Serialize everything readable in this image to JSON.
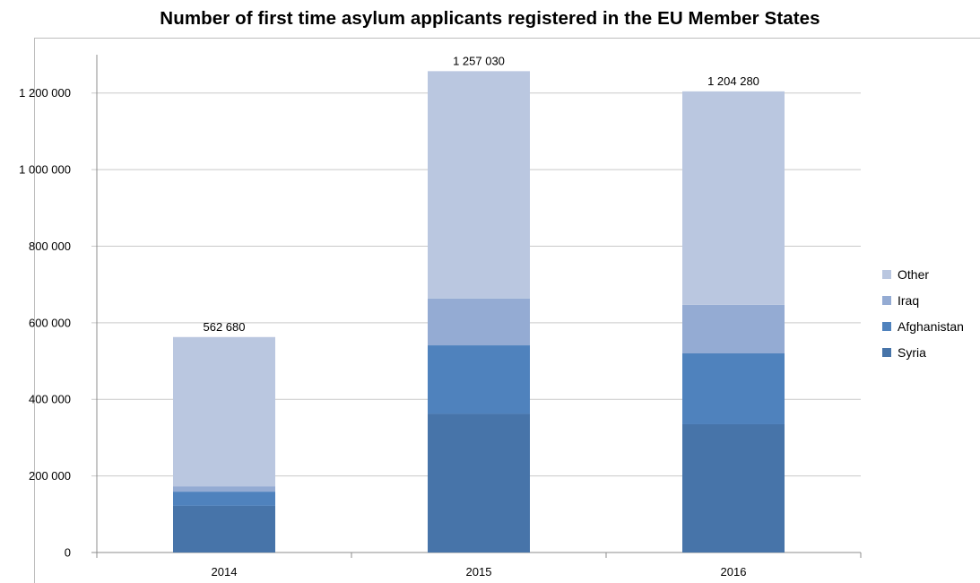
{
  "chart_data": {
    "type": "bar",
    "stacked": true,
    "title": "Number of first time asylum applicants registered in the EU Member States",
    "categories": [
      "2014",
      "2015",
      "2016"
    ],
    "series": [
      {
        "name": "Syria",
        "color": "#4774a9",
        "values": [
          122000,
          362000,
          335000
        ]
      },
      {
        "name": "Afghanistan",
        "color": "#4f82bd",
        "values": [
          37000,
          179000,
          185000
        ]
      },
      {
        "name": "Iraq",
        "color": "#94abd3",
        "values": [
          14000,
          122000,
          127000
        ]
      },
      {
        "name": "Other",
        "color": "#bac7e0",
        "values": [
          389680,
          594030,
          557280
        ]
      }
    ],
    "totals": [
      "562 680",
      "1 257 030",
      "1 204 280"
    ],
    "yticks": [
      "0",
      "200 000",
      "400 000",
      "600 000",
      "800 000",
      "1 000 000",
      "1 200 000"
    ],
    "ylim": [
      0,
      1300000
    ],
    "grid": true,
    "legend_position": "right"
  }
}
